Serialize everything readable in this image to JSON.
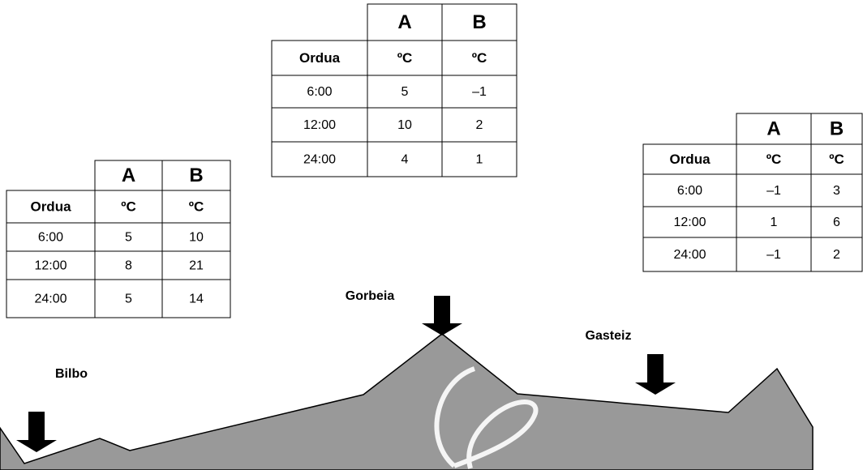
{
  "tables": [
    {
      "columns": [
        "A",
        "B"
      ],
      "header": [
        "Ordua",
        "ºC",
        "ºC"
      ],
      "rows": [
        [
          "6:00",
          "5",
          "10"
        ],
        [
          "12:00",
          "8",
          "21"
        ],
        [
          "24:00",
          "5",
          "14"
        ]
      ]
    },
    {
      "columns": [
        "A",
        "B"
      ],
      "header": [
        "Ordua",
        "ºC",
        "ºC"
      ],
      "rows": [
        [
          "6:00",
          "5",
          "–1"
        ],
        [
          "12:00",
          "10",
          "2"
        ],
        [
          "24:00",
          "4",
          "1"
        ]
      ]
    },
    {
      "columns": [
        "A",
        "B"
      ],
      "header": [
        "Ordua",
        "ºC",
        "ºC"
      ],
      "rows": [
        [
          "6:00",
          "–1",
          "3"
        ],
        [
          "12:00",
          "1",
          "6"
        ],
        [
          "24:00",
          "–1",
          "2"
        ]
      ]
    }
  ],
  "places": [
    {
      "label": "Bilbo"
    },
    {
      "label": "Gorbeia"
    },
    {
      "label": "Gasteiz"
    }
  ]
}
